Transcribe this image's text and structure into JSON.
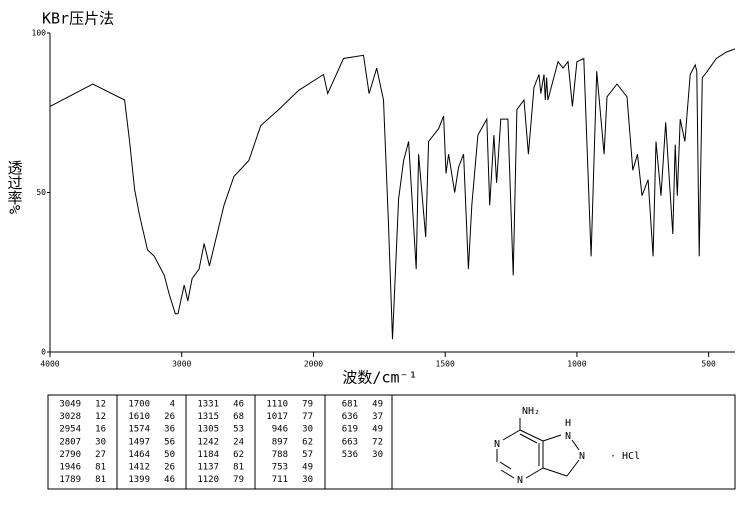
{
  "chart_data": {
    "type": "line",
    "title": "KBr压片法",
    "x_label": "波数/cm⁻¹",
    "y_label": "透过率%",
    "xlim": [
      4000,
      400
    ],
    "x_scale_break": 2000,
    "xticks": [
      4000,
      3000,
      2000,
      1500,
      1000,
      500
    ],
    "ylim": [
      0,
      100
    ],
    "yticks": [
      0,
      50,
      100
    ],
    "color": "#000000",
    "x": [
      4000,
      3675,
      3434,
      3396,
      3358,
      3321,
      3260,
      3208,
      3170,
      3132,
      3094,
      3049,
      3028,
      2981,
      2954,
      2921,
      2868,
      2830,
      2807,
      2790,
      2679,
      2604,
      2491,
      2400,
      2264,
      2113,
      1962,
      1946,
      1886,
      1810,
      1789,
      1760,
      1734,
      1715,
      1700,
      1677,
      1658,
      1639,
      1610,
      1601,
      1574,
      1563,
      1525,
      1506,
      1497,
      1487,
      1464,
      1449,
      1430,
      1412,
      1399,
      1376,
      1342,
      1331,
      1315,
      1305,
      1289,
      1262,
      1242,
      1228,
      1201,
      1184,
      1163,
      1144,
      1137,
      1125,
      1120,
      1115,
      1110,
      1072,
      1053,
      1034,
      1017,
      1000,
      974,
      946,
      925,
      897,
      886,
      848,
      810,
      788,
      770,
      753,
      730,
      711,
      700,
      681,
      663,
      654,
      636,
      627,
      619,
      608,
      590,
      570,
      551,
      545,
      536,
      524,
      505,
      471,
      433,
      400
    ],
    "values": [
      77,
      84,
      79,
      66,
      51,
      43,
      32,
      30,
      27,
      24,
      18,
      12,
      12,
      21,
      16,
      23,
      26,
      34,
      30,
      27,
      46,
      55,
      60,
      71,
      76,
      82,
      87,
      81,
      92,
      93,
      81,
      89,
      79,
      40,
      4,
      48,
      60,
      66,
      26,
      62,
      36,
      66,
      70,
      74,
      56,
      62,
      50,
      58,
      62,
      26,
      46,
      68,
      73,
      46,
      68,
      53,
      73,
      73,
      24,
      76,
      79,
      62,
      83,
      87,
      81,
      87,
      79,
      86,
      79,
      91,
      89,
      91,
      77,
      91,
      92,
      30,
      88,
      62,
      80,
      84,
      80,
      57,
      62,
      49,
      54,
      30,
      66,
      49,
      72,
      60,
      37,
      65,
      49,
      73,
      66,
      87,
      90,
      88,
      30,
      86,
      88,
      92,
      94,
      95
    ]
  },
  "peak_table": {
    "columns": [
      [
        [
          3049,
          12
        ],
        [
          3028,
          12
        ],
        [
          2954,
          16
        ],
        [
          2807,
          30
        ],
        [
          2790,
          27
        ],
        [
          1946,
          81
        ],
        [
          1789,
          81
        ]
      ],
      [
        [
          1700,
          4
        ],
        [
          1610,
          26
        ],
        [
          1574,
          36
        ],
        [
          1497,
          56
        ],
        [
          1464,
          50
        ],
        [
          1412,
          26
        ],
        [
          1399,
          46
        ]
      ],
      [
        [
          1331,
          46
        ],
        [
          1315,
          68
        ],
        [
          1305,
          53
        ],
        [
          1242,
          24
        ],
        [
          1184,
          62
        ],
        [
          1137,
          81
        ],
        [
          1120,
          79
        ]
      ],
      [
        [
          1110,
          79
        ],
        [
          1017,
          77
        ],
        [
          946,
          30
        ],
        [
          897,
          62
        ],
        [
          788,
          57
        ],
        [
          753,
          49
        ],
        [
          711,
          30
        ]
      ],
      [
        [
          681,
          49
        ],
        [
          636,
          37
        ],
        [
          619,
          49
        ],
        [
          663,
          72
        ],
        [
          536,
          30
        ]
      ]
    ]
  },
  "structure": {
    "labels": [
      "NH₂",
      "N",
      "N",
      "H",
      "N",
      "N"
    ],
    "salt": "· HCl"
  }
}
